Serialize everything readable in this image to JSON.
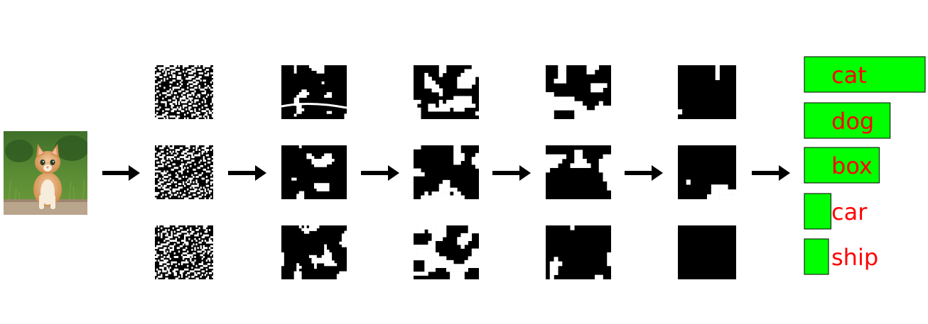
{
  "input_image": {
    "subject": "kitten-photo"
  },
  "pipeline": {
    "stages": 5,
    "maps_per_stage": 3,
    "arrows": 6
  },
  "output": {
    "classes": [
      {
        "label": "cat",
        "score": 1.0
      },
      {
        "label": "dog",
        "score": 0.71
      },
      {
        "label": "box",
        "score": 0.62
      },
      {
        "label": "car",
        "score": 0.22
      },
      {
        "label": "ship",
        "score": 0.2
      }
    ]
  },
  "colors": {
    "bar": "#00ff00",
    "bar_border": "#000000",
    "label": "#ff0000",
    "arrow": "#000000"
  }
}
